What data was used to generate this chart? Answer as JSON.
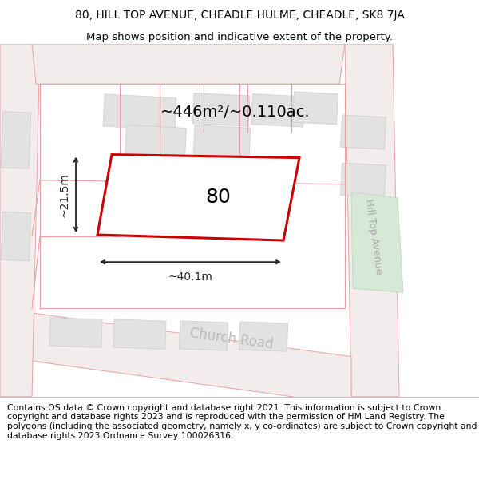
{
  "title_line1": "80, HILL TOP AVENUE, CHEADLE HULME, CHEADLE, SK8 7JA",
  "title_line2": "Map shows position and indicative extent of the property.",
  "footer_text": "Contains OS data © Crown copyright and database right 2021. This information is subject to Crown copyright and database rights 2023 and is reproduced with the permission of HM Land Registry. The polygons (including the associated geometry, namely x, y co-ordinates) are subject to Crown copyright and database rights 2023 Ordnance Survey 100026316.",
  "area_label": "~446m²/~0.110ac.",
  "width_label": "~40.1m",
  "height_label": "~21.5m",
  "property_number": "80",
  "road_label_ht": "Hill Top Avenue",
  "road_label_cr": "Church Road",
  "map_bg": "#f5eeee",
  "road_fill": "#f5eeee",
  "road_line": "#e8a0a0",
  "block_color": "#e2e2e2",
  "block_edge": "#d0d0d0",
  "green_color": "#d6e8d6",
  "green_edge": "#c0d8c0",
  "plot_edge": "#cc0000",
  "plot_fill": "#ffffff",
  "dim_color": "#222222",
  "title_fontsize": 10,
  "label_fontsize": 9,
  "footer_fontsize": 7.8,
  "figsize": [
    6.0,
    6.25
  ],
  "dpi": 100
}
